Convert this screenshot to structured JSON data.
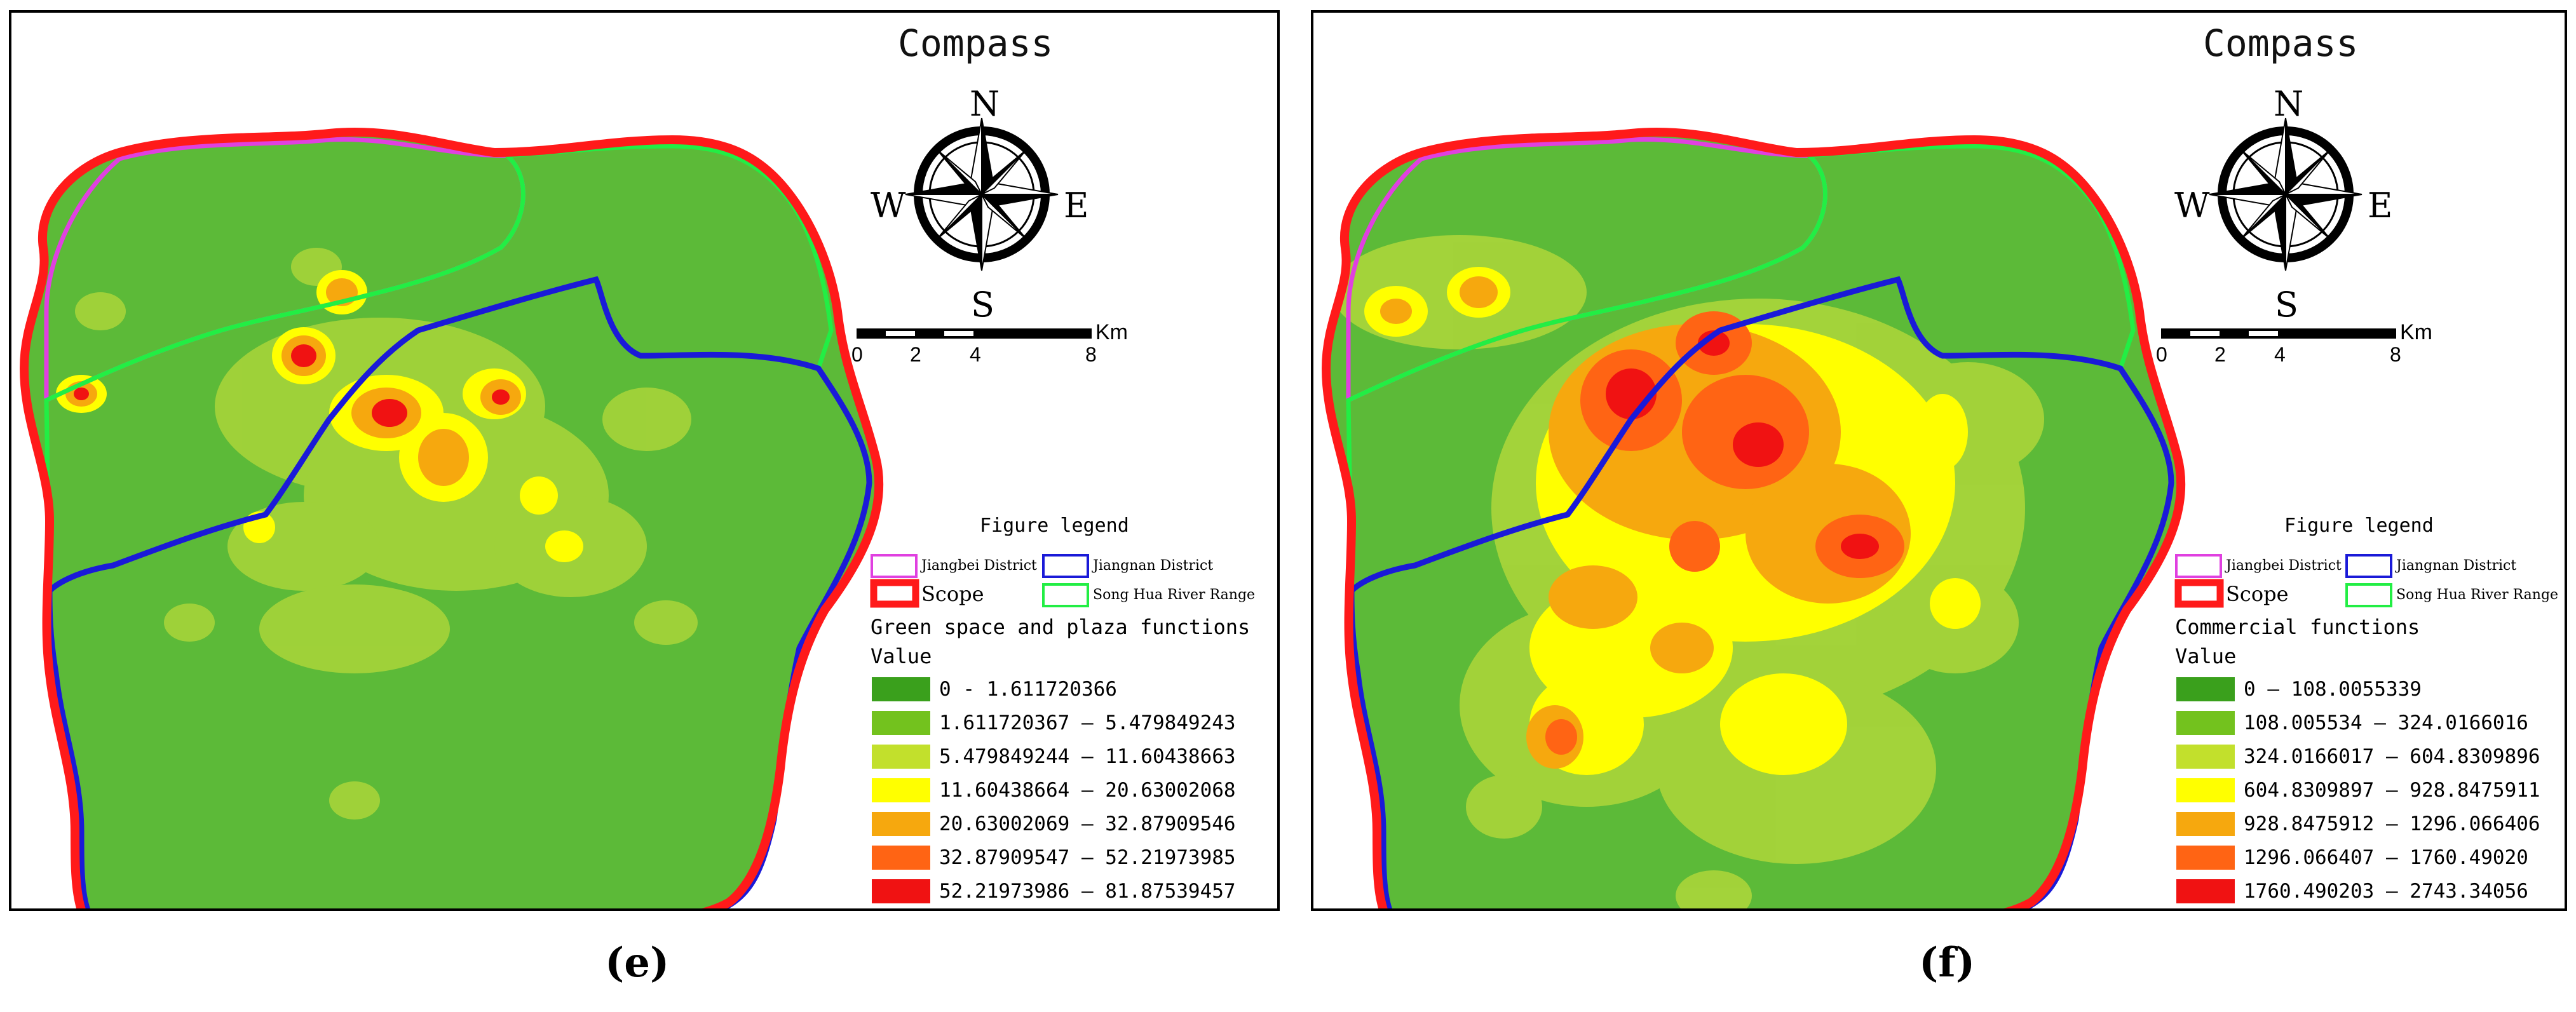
{
  "panels": [
    {
      "id": "e",
      "caption": "(e)",
      "compass_title": "Compass",
      "directions": {
        "n": "N",
        "s": "S",
        "e": "E",
        "w": "W"
      },
      "scale": {
        "unit": "Km",
        "ticks": [
          "0",
          "2",
          "4",
          "8"
        ]
      },
      "legend": {
        "title": "Figure legend",
        "items": [
          {
            "label": "Jiangbei District",
            "color": "#e040e0"
          },
          {
            "label": "Jiangnan District",
            "color": "#1a1ad8"
          },
          {
            "label": "Scope",
            "color": "#ff1a1a"
          },
          {
            "label": "Song Hua River Range",
            "color": "#22ee44"
          }
        ]
      },
      "category": "Green space and plaza functions",
      "value_label": "Value",
      "classes": [
        {
          "label": "0 - 1.611720366",
          "color": "#3aa01c"
        },
        {
          "label": "1.611720367 — 5.479849243",
          "color": "#73c21e"
        },
        {
          "label": "5.479849244 — 11.60438663",
          "color": "#c2e02c"
        },
        {
          "label": "11.60438664 — 20.63002068",
          "color": "#ffff00"
        },
        {
          "label": "20.63002069 — 32.87909546",
          "color": "#f6a80e"
        },
        {
          "label": "32.87909547 — 52.21973985",
          "color": "#ff6414"
        },
        {
          "label": "52.21973986 — 81.87539457",
          "color": "#f01212"
        }
      ]
    },
    {
      "id": "f",
      "caption": "(f)",
      "compass_title": "Compass",
      "directions": {
        "n": "N",
        "s": "S",
        "e": "E",
        "w": "W"
      },
      "scale": {
        "unit": "Km",
        "ticks": [
          "0",
          "2",
          "4",
          "8"
        ]
      },
      "legend": {
        "title": "Figure legend",
        "items": [
          {
            "label": "Jiangbei District",
            "color": "#e040e0"
          },
          {
            "label": "Jiangnan District",
            "color": "#1a1ad8"
          },
          {
            "label": "Scope",
            "color": "#ff1a1a"
          },
          {
            "label": "Song Hua River Range",
            "color": "#22ee44"
          }
        ]
      },
      "category": "Commercial functions",
      "value_label": "Value",
      "classes": [
        {
          "label": "0 — 108.0055339",
          "color": "#3aa01c"
        },
        {
          "label": "108.005534 — 324.0166016",
          "color": "#73c21e"
        },
        {
          "label": "324.0166017 — 604.8309896",
          "color": "#c2e02c"
        },
        {
          "label": "604.8309897 — 928.8475911",
          "color": "#ffff00"
        },
        {
          "label": "928.8475912 — 1296.066406",
          "color": "#f6a80e"
        },
        {
          "label": "1296.066407 — 1760.49020",
          "color": "#ff6414"
        },
        {
          "label": "1760.490203 — 2743.34056",
          "color": "#f01212"
        }
      ]
    }
  ]
}
